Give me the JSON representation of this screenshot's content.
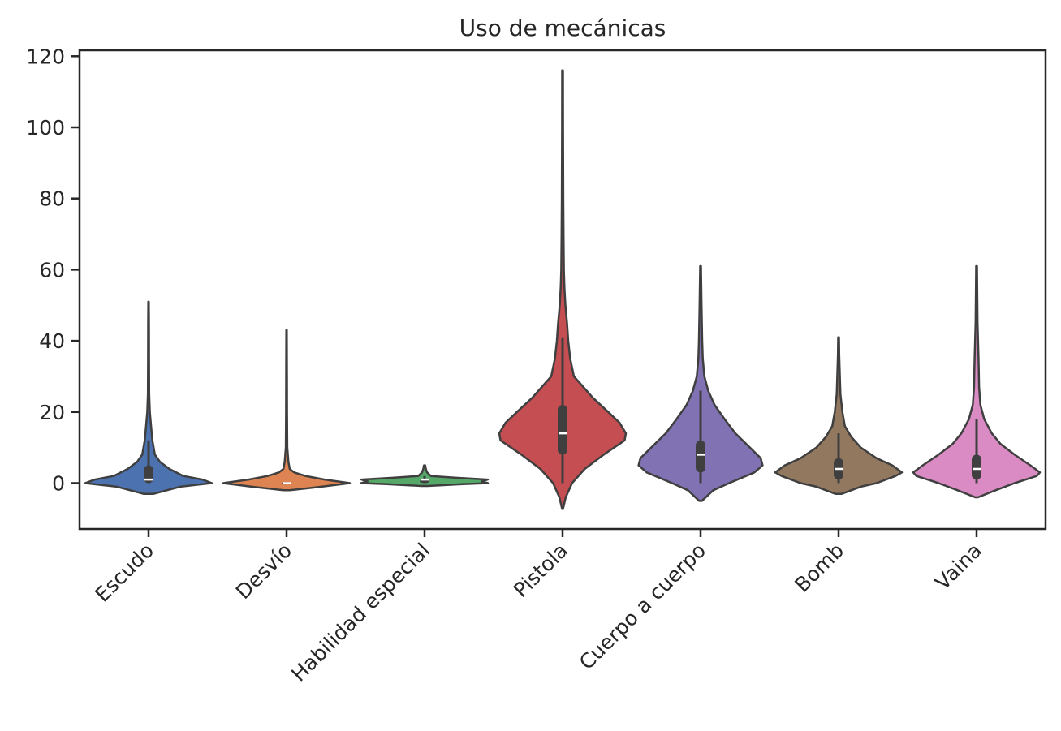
{
  "chart_data": {
    "type": "violin",
    "title": "Uso de mecánicas",
    "xlabel": "",
    "ylabel": "",
    "ylim": [
      -13,
      122
    ],
    "yticks": [
      0,
      20,
      40,
      60,
      80,
      100,
      120
    ],
    "categories": [
      "Escudo",
      "Desvío",
      "Habilidad especial",
      "Pistola",
      "Cuerpo a cuerpo",
      "Bomb",
      "Vaina"
    ],
    "colors": [
      "#4c72b0",
      "#dd8452",
      "#55a868",
      "#c44e52",
      "#8172b3",
      "#937860",
      "#da8bc3"
    ],
    "series": [
      {
        "min": 0,
        "q1": 0,
        "median": 1,
        "q3": 5,
        "max": 51,
        "whisker_high": 12,
        "density": [
          [
            -3,
            0.08
          ],
          [
            -1,
            0.5
          ],
          [
            0,
            1.0
          ],
          [
            1,
            0.85
          ],
          [
            2,
            0.55
          ],
          [
            4,
            0.33
          ],
          [
            6,
            0.18
          ],
          [
            8,
            0.1
          ],
          [
            12,
            0.06
          ],
          [
            16,
            0.04
          ],
          [
            20,
            0.02
          ],
          [
            25,
            0.01
          ],
          [
            35,
            0.008
          ],
          [
            45,
            0.007
          ],
          [
            51,
            0.004
          ]
        ]
      },
      {
        "min": 0,
        "q1": 0,
        "median": 0,
        "q3": 0,
        "max": 43,
        "whisker_high": 0,
        "density": [
          [
            -2,
            0.05
          ],
          [
            -1,
            0.55
          ],
          [
            0,
            1.0
          ],
          [
            1,
            0.6
          ],
          [
            2,
            0.3
          ],
          [
            3,
            0.12
          ],
          [
            4,
            0.05
          ],
          [
            6,
            0.03
          ],
          [
            10,
            0.012
          ],
          [
            20,
            0.008
          ],
          [
            30,
            0.006
          ],
          [
            43,
            0.004
          ]
        ]
      },
      {
        "min": 0,
        "q1": 0,
        "median": 1,
        "q3": 1,
        "max": 5,
        "whisker_high": 2,
        "density": [
          [
            -0.8,
            0.05
          ],
          [
            -0.3,
            0.6
          ],
          [
            0,
            1.0
          ],
          [
            0.5,
            0.9
          ],
          [
            1,
            1.0
          ],
          [
            1.5,
            0.5
          ],
          [
            2,
            0.1
          ],
          [
            3,
            0.04
          ],
          [
            4,
            0.02
          ],
          [
            5,
            0.01
          ]
        ]
      },
      {
        "min": 0,
        "q1": 8,
        "median": 14,
        "q3": 22,
        "max": 116,
        "whisker_high": 41,
        "density": [
          [
            -7,
            0.01
          ],
          [
            -4,
            0.05
          ],
          [
            0,
            0.15
          ],
          [
            4,
            0.35
          ],
          [
            8,
            0.65
          ],
          [
            12,
            0.98
          ],
          [
            14,
            1.0
          ],
          [
            17,
            0.9
          ],
          [
            20,
            0.72
          ],
          [
            24,
            0.48
          ],
          [
            28,
            0.28
          ],
          [
            30,
            0.18
          ],
          [
            35,
            0.12
          ],
          [
            40,
            0.09
          ],
          [
            45,
            0.07
          ],
          [
            50,
            0.045
          ],
          [
            55,
            0.03
          ],
          [
            60,
            0.02
          ],
          [
            70,
            0.015
          ],
          [
            80,
            0.012
          ],
          [
            100,
            0.008
          ],
          [
            116,
            0.006
          ]
        ]
      },
      {
        "min": 0,
        "q1": 3,
        "median": 8,
        "q3": 12,
        "max": 61,
        "whisker_high": 26,
        "density": [
          [
            -5,
            0.02
          ],
          [
            -2,
            0.2
          ],
          [
            0,
            0.45
          ],
          [
            3,
            0.85
          ],
          [
            5,
            0.98
          ],
          [
            7,
            0.95
          ],
          [
            10,
            0.78
          ],
          [
            14,
            0.55
          ],
          [
            18,
            0.38
          ],
          [
            22,
            0.22
          ],
          [
            26,
            0.12
          ],
          [
            30,
            0.06
          ],
          [
            35,
            0.035
          ],
          [
            40,
            0.025
          ],
          [
            50,
            0.015
          ],
          [
            61,
            0.006
          ]
        ]
      },
      {
        "min": 0,
        "q1": 1,
        "median": 4,
        "q3": 7,
        "max": 41,
        "whisker_high": 14,
        "density": [
          [
            -3,
            0.05
          ],
          [
            -1,
            0.35
          ],
          [
            0,
            0.6
          ],
          [
            2,
            0.9
          ],
          [
            3,
            1.0
          ],
          [
            5,
            0.85
          ],
          [
            7,
            0.6
          ],
          [
            10,
            0.35
          ],
          [
            13,
            0.2
          ],
          [
            16,
            0.1
          ],
          [
            20,
            0.06
          ],
          [
            25,
            0.03
          ],
          [
            30,
            0.02
          ],
          [
            36,
            0.01
          ],
          [
            41,
            0.006
          ]
        ]
      },
      {
        "min": 0,
        "q1": 1,
        "median": 4,
        "q3": 8,
        "max": 61,
        "whisker_high": 18,
        "density": [
          [
            -4,
            0.02
          ],
          [
            -2,
            0.3
          ],
          [
            0,
            0.6
          ],
          [
            2,
            0.95
          ],
          [
            3,
            1.0
          ],
          [
            5,
            0.85
          ],
          [
            8,
            0.6
          ],
          [
            11,
            0.38
          ],
          [
            14,
            0.24
          ],
          [
            18,
            0.12
          ],
          [
            22,
            0.06
          ],
          [
            27,
            0.04
          ],
          [
            32,
            0.035
          ],
          [
            36,
            0.03
          ],
          [
            45,
            0.015
          ],
          [
            61,
            0.006
          ]
        ]
      }
    ]
  }
}
